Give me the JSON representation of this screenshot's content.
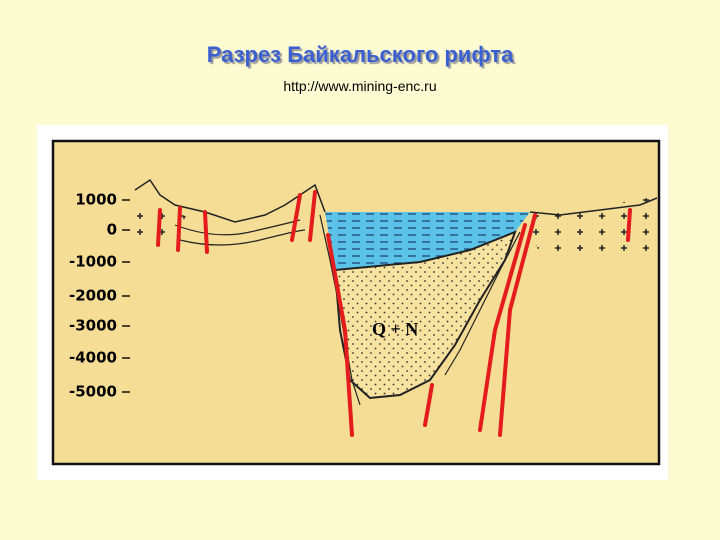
{
  "header": {
    "title": "Разрез Байкальского рифта",
    "source": "http://www.mining-enc.ru"
  },
  "diagram": {
    "depth_labels": [
      "1000",
      "0",
      "-1000",
      "-2000",
      "-3000",
      "-4000",
      "-5000"
    ],
    "sediment_label": "Q + N"
  }
}
